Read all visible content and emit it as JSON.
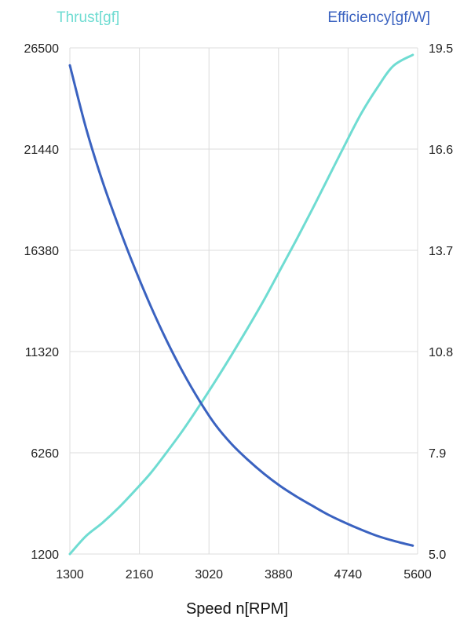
{
  "chart_data": {
    "type": "line",
    "title": "",
    "xlabel": "Speed n[RPM]",
    "y_left_label": "Thrust[gf]",
    "y_right_label": "Efficiency[gf/W]",
    "x_ticks": [
      1300,
      2160,
      3020,
      3880,
      4740,
      5600
    ],
    "y_left_ticks": [
      1200,
      6260,
      11320,
      16380,
      21440,
      26500
    ],
    "y_right_ticks": [
      "5.0",
      "7.9",
      "10.8",
      "13.7",
      "16.6",
      "19.5"
    ],
    "xlim": [
      1300,
      5600
    ],
    "ylim_left": [
      1200,
      26500
    ],
    "ylim_right": [
      5.0,
      19.5
    ],
    "grid": true,
    "colors": {
      "thrust": "#6fdcd2",
      "efficiency": "#3a62c0"
    },
    "series": [
      {
        "name": "Thrust[gf]",
        "axis": "left",
        "x": [
          1300,
          1500,
          1700,
          1900,
          2100,
          2300,
          2500,
          2700,
          2900,
          3100,
          3300,
          3500,
          3700,
          3900,
          4100,
          4300,
          4500,
          4700,
          4900,
          5100,
          5300,
          5540
        ],
        "values": [
          1200,
          2100,
          2750,
          3500,
          4350,
          5250,
          6300,
          7400,
          8600,
          9850,
          11150,
          12500,
          13900,
          15400,
          16900,
          18450,
          20050,
          21650,
          23200,
          24500,
          25600,
          26150
        ]
      },
      {
        "name": "Efficiency[gf/W]",
        "axis": "right",
        "x": [
          1300,
          1500,
          1700,
          1900,
          2100,
          2300,
          2500,
          2700,
          2900,
          3100,
          3300,
          3500,
          3700,
          3900,
          4100,
          4300,
          4500,
          4700,
          4900,
          5100,
          5300,
          5540
        ],
        "values": [
          19.0,
          17.2,
          15.7,
          14.4,
          13.2,
          12.1,
          11.1,
          10.2,
          9.4,
          8.7,
          8.15,
          7.7,
          7.3,
          6.95,
          6.65,
          6.38,
          6.12,
          5.9,
          5.7,
          5.52,
          5.38,
          5.24
        ]
      }
    ]
  }
}
